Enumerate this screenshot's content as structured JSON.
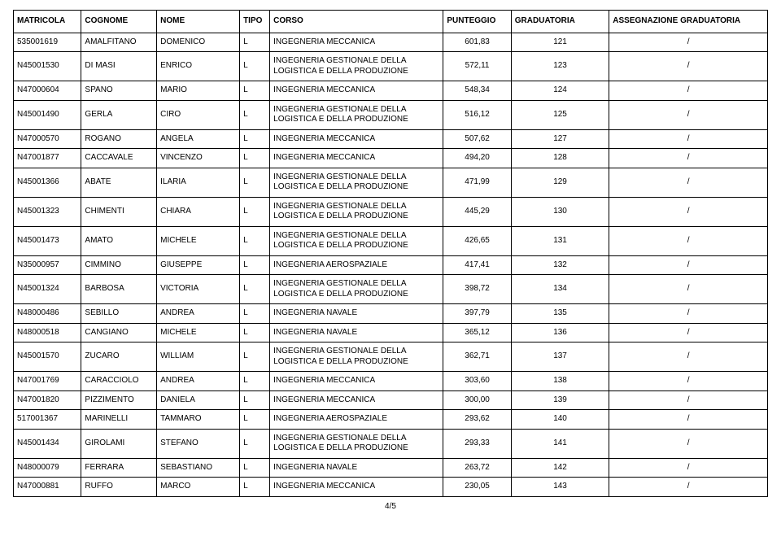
{
  "columns": [
    {
      "key": "matricola",
      "label": "MATRICOLA",
      "class": "col-matricola"
    },
    {
      "key": "cognome",
      "label": "COGNOME",
      "class": "col-cognome"
    },
    {
      "key": "nome",
      "label": "NOME",
      "class": "col-nome"
    },
    {
      "key": "tipo",
      "label": "TIPO",
      "class": "col-tipo"
    },
    {
      "key": "corso",
      "label": "CORSO",
      "class": "col-corso"
    },
    {
      "key": "punteggio",
      "label": "PUNTEGGIO",
      "class": "col-punteggio"
    },
    {
      "key": "graduatoria",
      "label": "GRADUATORIA",
      "class": "col-graduatoria"
    },
    {
      "key": "assegn",
      "label": "ASSEGNAZIONE GRADUATORIA",
      "class": "col-assegn"
    }
  ],
  "rows": [
    {
      "matricola": "535001619",
      "cognome": "AMALFITANO",
      "nome": "DOMENICO",
      "tipo": "L",
      "corso": "INGEGNERIA MECCANICA",
      "punteggio": "601,83",
      "graduatoria": "121",
      "assegn": "/"
    },
    {
      "matricola": "N45001530",
      "cognome": "DI MASI",
      "nome": "ENRICO",
      "tipo": "L",
      "corso": "INGEGNERIA GESTIONALE DELLA LOGISTICA E DELLA PRODUZIONE",
      "punteggio": "572,11",
      "graduatoria": "123",
      "assegn": "/"
    },
    {
      "matricola": "N47000604",
      "cognome": "SPANO",
      "nome": "MARIO",
      "tipo": "L",
      "corso": "INGEGNERIA MECCANICA",
      "punteggio": "548,34",
      "graduatoria": "124",
      "assegn": "/"
    },
    {
      "matricola": "N45001490",
      "cognome": "GERLA",
      "nome": "CIRO",
      "tipo": "L",
      "corso": "INGEGNERIA GESTIONALE DELLA LOGISTICA E DELLA PRODUZIONE",
      "punteggio": "516,12",
      "graduatoria": "125",
      "assegn": "/"
    },
    {
      "matricola": "N47000570",
      "cognome": "ROGANO",
      "nome": "ANGELA",
      "tipo": "L",
      "corso": "INGEGNERIA MECCANICA",
      "punteggio": "507,62",
      "graduatoria": "127",
      "assegn": "/"
    },
    {
      "matricola": "N47001877",
      "cognome": "CACCAVALE",
      "nome": "VINCENZO",
      "tipo": "L",
      "corso": "INGEGNERIA MECCANICA",
      "punteggio": "494,20",
      "graduatoria": "128",
      "assegn": "/"
    },
    {
      "matricola": "N45001366",
      "cognome": "ABATE",
      "nome": "ILARIA",
      "tipo": "L",
      "corso": "INGEGNERIA GESTIONALE DELLA LOGISTICA E DELLA PRODUZIONE",
      "punteggio": "471,99",
      "graduatoria": "129",
      "assegn": "/"
    },
    {
      "matricola": "N45001323",
      "cognome": "CHIMENTI",
      "nome": "CHIARA",
      "tipo": "L",
      "corso": "INGEGNERIA GESTIONALE DELLA LOGISTICA E DELLA PRODUZIONE",
      "punteggio": "445,29",
      "graduatoria": "130",
      "assegn": "/"
    },
    {
      "matricola": "N45001473",
      "cognome": "AMATO",
      "nome": "MICHELE",
      "tipo": "L",
      "corso": "INGEGNERIA GESTIONALE DELLA LOGISTICA E DELLA PRODUZIONE",
      "punteggio": "426,65",
      "graduatoria": "131",
      "assegn": "/"
    },
    {
      "matricola": "N35000957",
      "cognome": "CIMMINO",
      "nome": "GIUSEPPE",
      "tipo": "L",
      "corso": "INGEGNERIA AEROSPAZIALE",
      "punteggio": "417,41",
      "graduatoria": "132",
      "assegn": "/"
    },
    {
      "matricola": "N45001324",
      "cognome": "BARBOSA",
      "nome": "VICTORIA",
      "tipo": "L",
      "corso": "INGEGNERIA GESTIONALE DELLA LOGISTICA E DELLA PRODUZIONE",
      "punteggio": "398,72",
      "graduatoria": "134",
      "assegn": "/"
    },
    {
      "matricola": "N48000486",
      "cognome": "SEBILLO",
      "nome": "ANDREA",
      "tipo": "L",
      "corso": "INGEGNERIA NAVALE",
      "punteggio": "397,79",
      "graduatoria": "135",
      "assegn": "/"
    },
    {
      "matricola": "N48000518",
      "cognome": "CANGIANO",
      "nome": "MICHELE",
      "tipo": "L",
      "corso": "INGEGNERIA NAVALE",
      "punteggio": "365,12",
      "graduatoria": "136",
      "assegn": "/"
    },
    {
      "matricola": "N45001570",
      "cognome": "ZUCARO",
      "nome": "WILLIAM",
      "tipo": "L",
      "corso": "INGEGNERIA GESTIONALE DELLA LOGISTICA E DELLA PRODUZIONE",
      "punteggio": "362,71",
      "graduatoria": "137",
      "assegn": "/"
    },
    {
      "matricola": "N47001769",
      "cognome": "CARACCIOLO",
      "nome": "ANDREA",
      "tipo": "L",
      "corso": "INGEGNERIA MECCANICA",
      "punteggio": "303,60",
      "graduatoria": "138",
      "assegn": "/"
    },
    {
      "matricola": "N47001820",
      "cognome": "PIZZIMENTO",
      "nome": "DANIELA",
      "tipo": "L",
      "corso": "INGEGNERIA MECCANICA",
      "punteggio": "300,00",
      "graduatoria": "139",
      "assegn": "/"
    },
    {
      "matricola": "517001367",
      "cognome": "MARINELLI",
      "nome": "TAMMARO",
      "tipo": "L",
      "corso": "INGEGNERIA AEROSPAZIALE",
      "punteggio": "293,62",
      "graduatoria": "140",
      "assegn": "/"
    },
    {
      "matricola": "N45001434",
      "cognome": "GIROLAMI",
      "nome": "STEFANO",
      "tipo": "L",
      "corso": "INGEGNERIA GESTIONALE DELLA LOGISTICA E DELLA PRODUZIONE",
      "punteggio": "293,33",
      "graduatoria": "141",
      "assegn": "/"
    },
    {
      "matricola": "N48000079",
      "cognome": "FERRARA",
      "nome": "SEBASTIANO",
      "tipo": "L",
      "corso": "INGEGNERIA NAVALE",
      "punteggio": "263,72",
      "graduatoria": "142",
      "assegn": "/"
    },
    {
      "matricola": "N47000881",
      "cognome": "RUFFO",
      "nome": "MARCO",
      "tipo": "L",
      "corso": "INGEGNERIA MECCANICA",
      "punteggio": "230,05",
      "graduatoria": "143",
      "assegn": "/"
    }
  ],
  "pager": "4/5"
}
